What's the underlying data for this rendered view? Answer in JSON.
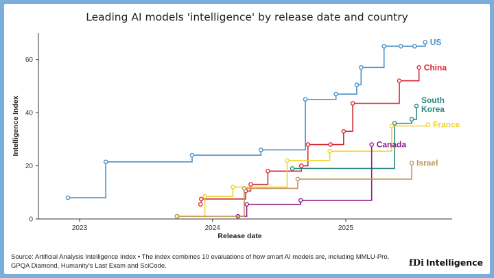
{
  "title": "Leading AI models 'intelligence' by release date and country",
  "footer": {
    "source": "Source: Artificial Analysis Intelligence Index • The index combines 10 evaluations of how smart AI models are, including MMLU-Pro, GPQA Diamond, Humanity's Last Exam and SciCode.",
    "brand_mark": "fDi",
    "brand_name": "Intelligence"
  },
  "chart_data": {
    "type": "line",
    "title": "Leading AI models 'intelligence' by release date and country",
    "xlabel": "Release date",
    "ylabel": "Intelligence Index",
    "xlim": [
      "2022-09-10",
      "2025-10-20"
    ],
    "ylim": [
      0,
      70
    ],
    "x_ticks": [
      {
        "date": "2023-01-01",
        "label": "2023"
      },
      {
        "date": "2024-01-01",
        "label": "2024"
      },
      {
        "date": "2025-01-01",
        "label": "2025"
      }
    ],
    "y_ticks": [
      0,
      20,
      40,
      60
    ],
    "step": "after",
    "series": [
      {
        "name": "US",
        "color": "#4a90c8",
        "points": [
          [
            "2022-11-30",
            8
          ],
          [
            "2023-03-14",
            21.5
          ],
          [
            "2023-11-06",
            24
          ],
          [
            "2024-05-13",
            26
          ],
          [
            "2024-09-12",
            45
          ],
          [
            "2024-12-05",
            47
          ],
          [
            "2025-01-31",
            50.5
          ],
          [
            "2025-02-12",
            57
          ],
          [
            "2025-04-16",
            65
          ],
          [
            "2025-06-01",
            65
          ],
          [
            "2025-07-09",
            65
          ],
          [
            "2025-08-07",
            66.5
          ]
        ]
      },
      {
        "name": "China",
        "color": "#d42a35",
        "points": [
          [
            "2023-11-29",
            5.5
          ],
          [
            "2023-12-01",
            7.5
          ],
          [
            "2024-04-01",
            10.5
          ],
          [
            "2024-04-15",
            13
          ],
          [
            "2024-06-01",
            18
          ],
          [
            "2024-09-01",
            20
          ],
          [
            "2024-09-19",
            28
          ],
          [
            "2024-11-20",
            28
          ],
          [
            "2024-12-26",
            33
          ],
          [
            "2025-01-20",
            43.5
          ],
          [
            "2025-05-28",
            52
          ],
          [
            "2025-07-21",
            57
          ]
        ]
      },
      {
        "name": "South Korea",
        "color": "#2a8a80",
        "points": [
          [
            "2024-08-07",
            19
          ],
          [
            "2025-05-15",
            36
          ],
          [
            "2025-07-01",
            37.5
          ],
          [
            "2025-07-14",
            42.5
          ]
        ]
      },
      {
        "name": "France",
        "color": "#f0d42c",
        "points": [
          [
            "2023-09-27",
            1
          ],
          [
            "2023-12-11",
            8.5
          ],
          [
            "2024-02-26",
            12
          ],
          [
            "2024-07-24",
            22
          ],
          [
            "2024-11-18",
            25.5
          ],
          [
            "2025-05-07",
            35
          ],
          [
            "2025-08-15",
            35.5
          ]
        ]
      },
      {
        "name": "Canada",
        "color": "#8e1f86",
        "points": [
          [
            "2024-03-11",
            1
          ],
          [
            "2024-04-04",
            5.5
          ],
          [
            "2024-08-30",
            7
          ],
          [
            "2025-03-13",
            28
          ]
        ]
      },
      {
        "name": "Israel",
        "color": "#c4935a",
        "points": [
          [
            "2023-09-25",
            1
          ],
          [
            "2024-03-28",
            11.5
          ],
          [
            "2024-08-22",
            15
          ],
          [
            "2025-07-01",
            21
          ]
        ]
      }
    ]
  }
}
